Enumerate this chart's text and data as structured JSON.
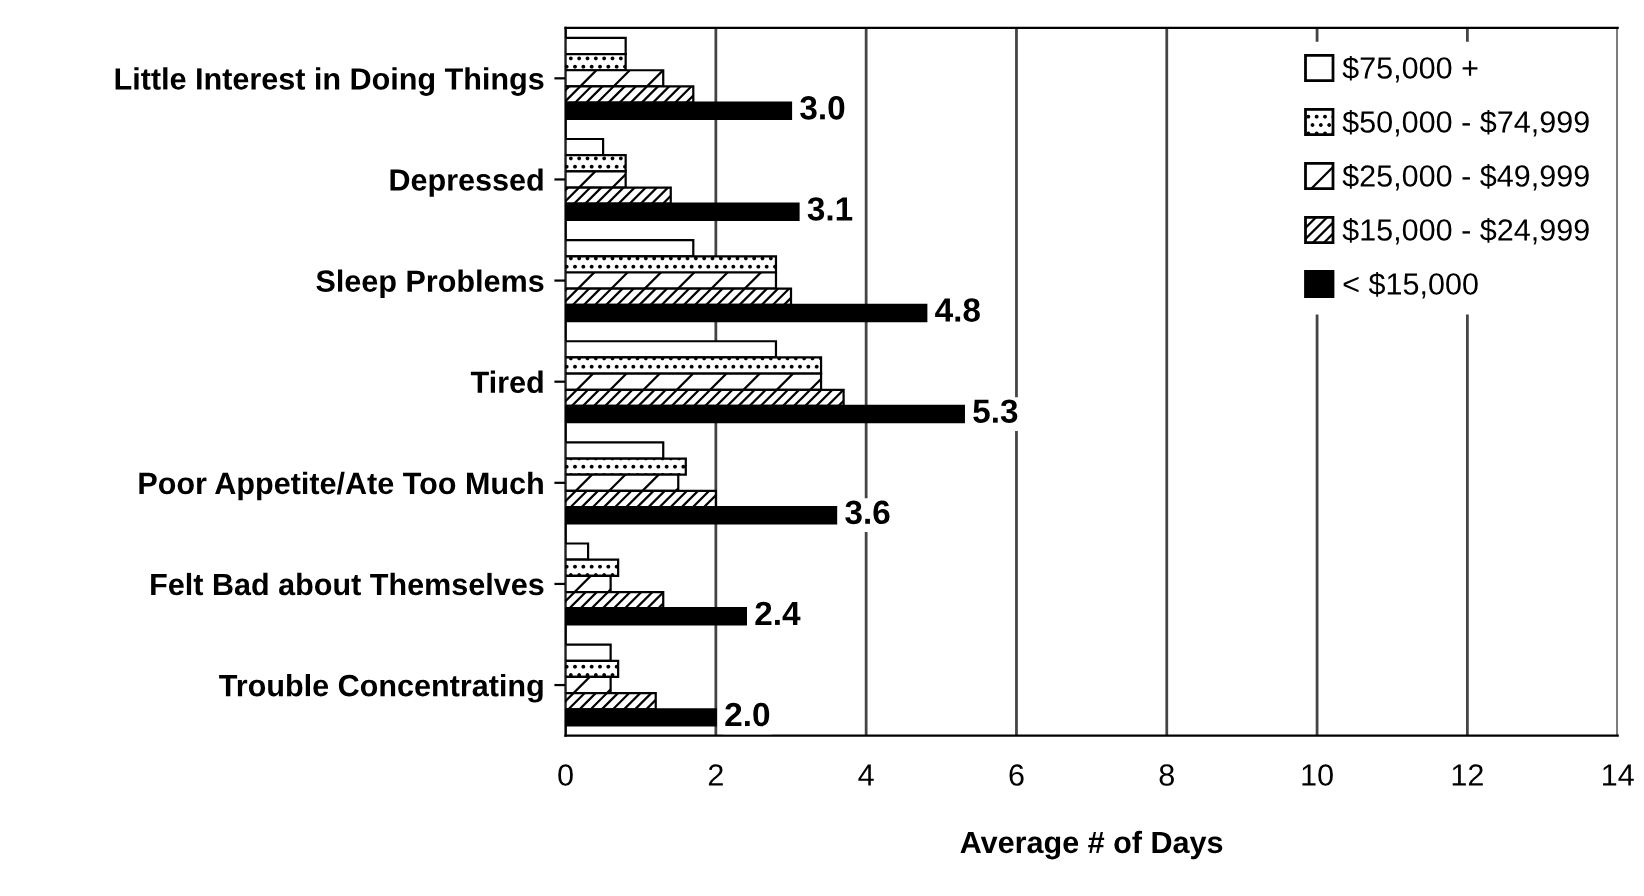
{
  "chart_data": {
    "type": "bar",
    "orientation": "horizontal",
    "xlabel": "Average # of Days",
    "categories": [
      "Little Interest in Doing Things",
      "Depressed",
      "Sleep Problems",
      "Tired",
      "Poor Appetite/Ate Too Much",
      "Felt Bad about Themselves",
      "Trouble Concentrating"
    ],
    "series": [
      {
        "name": "$75,000 +",
        "color": "#ffffff",
        "values": [
          0.8,
          0.5,
          1.7,
          2.8,
          1.3,
          0.3,
          0.6
        ]
      },
      {
        "name": "$50,000 - $74,999",
        "color": "#000000",
        "values": [
          0.8,
          0.8,
          2.8,
          3.4,
          1.6,
          0.7,
          0.7
        ]
      },
      {
        "name": "$25,000 - $49,999",
        "color": "#000000",
        "values": [
          1.3,
          0.8,
          2.8,
          3.4,
          1.5,
          0.6,
          0.6
        ]
      },
      {
        "name": "$15,000 - $24,999",
        "color": "#000000",
        "values": [
          1.7,
          1.4,
          3.0,
          3.7,
          2.0,
          1.3,
          1.2
        ]
      },
      {
        "name": "< $15,000",
        "color": "#000000",
        "values": [
          3.0,
          3.1,
          4.8,
          5.3,
          3.6,
          2.4,
          2.0
        ],
        "value_labels": [
          "3.0",
          "3.1",
          "4.8",
          "5.3",
          "3.6",
          "2.4",
          "2.0"
        ]
      }
    ],
    "xlim": [
      0,
      14
    ],
    "xticks": [
      0,
      2,
      4,
      6,
      8,
      10,
      12,
      14
    ],
    "grid": "x",
    "legend": "top right"
  }
}
